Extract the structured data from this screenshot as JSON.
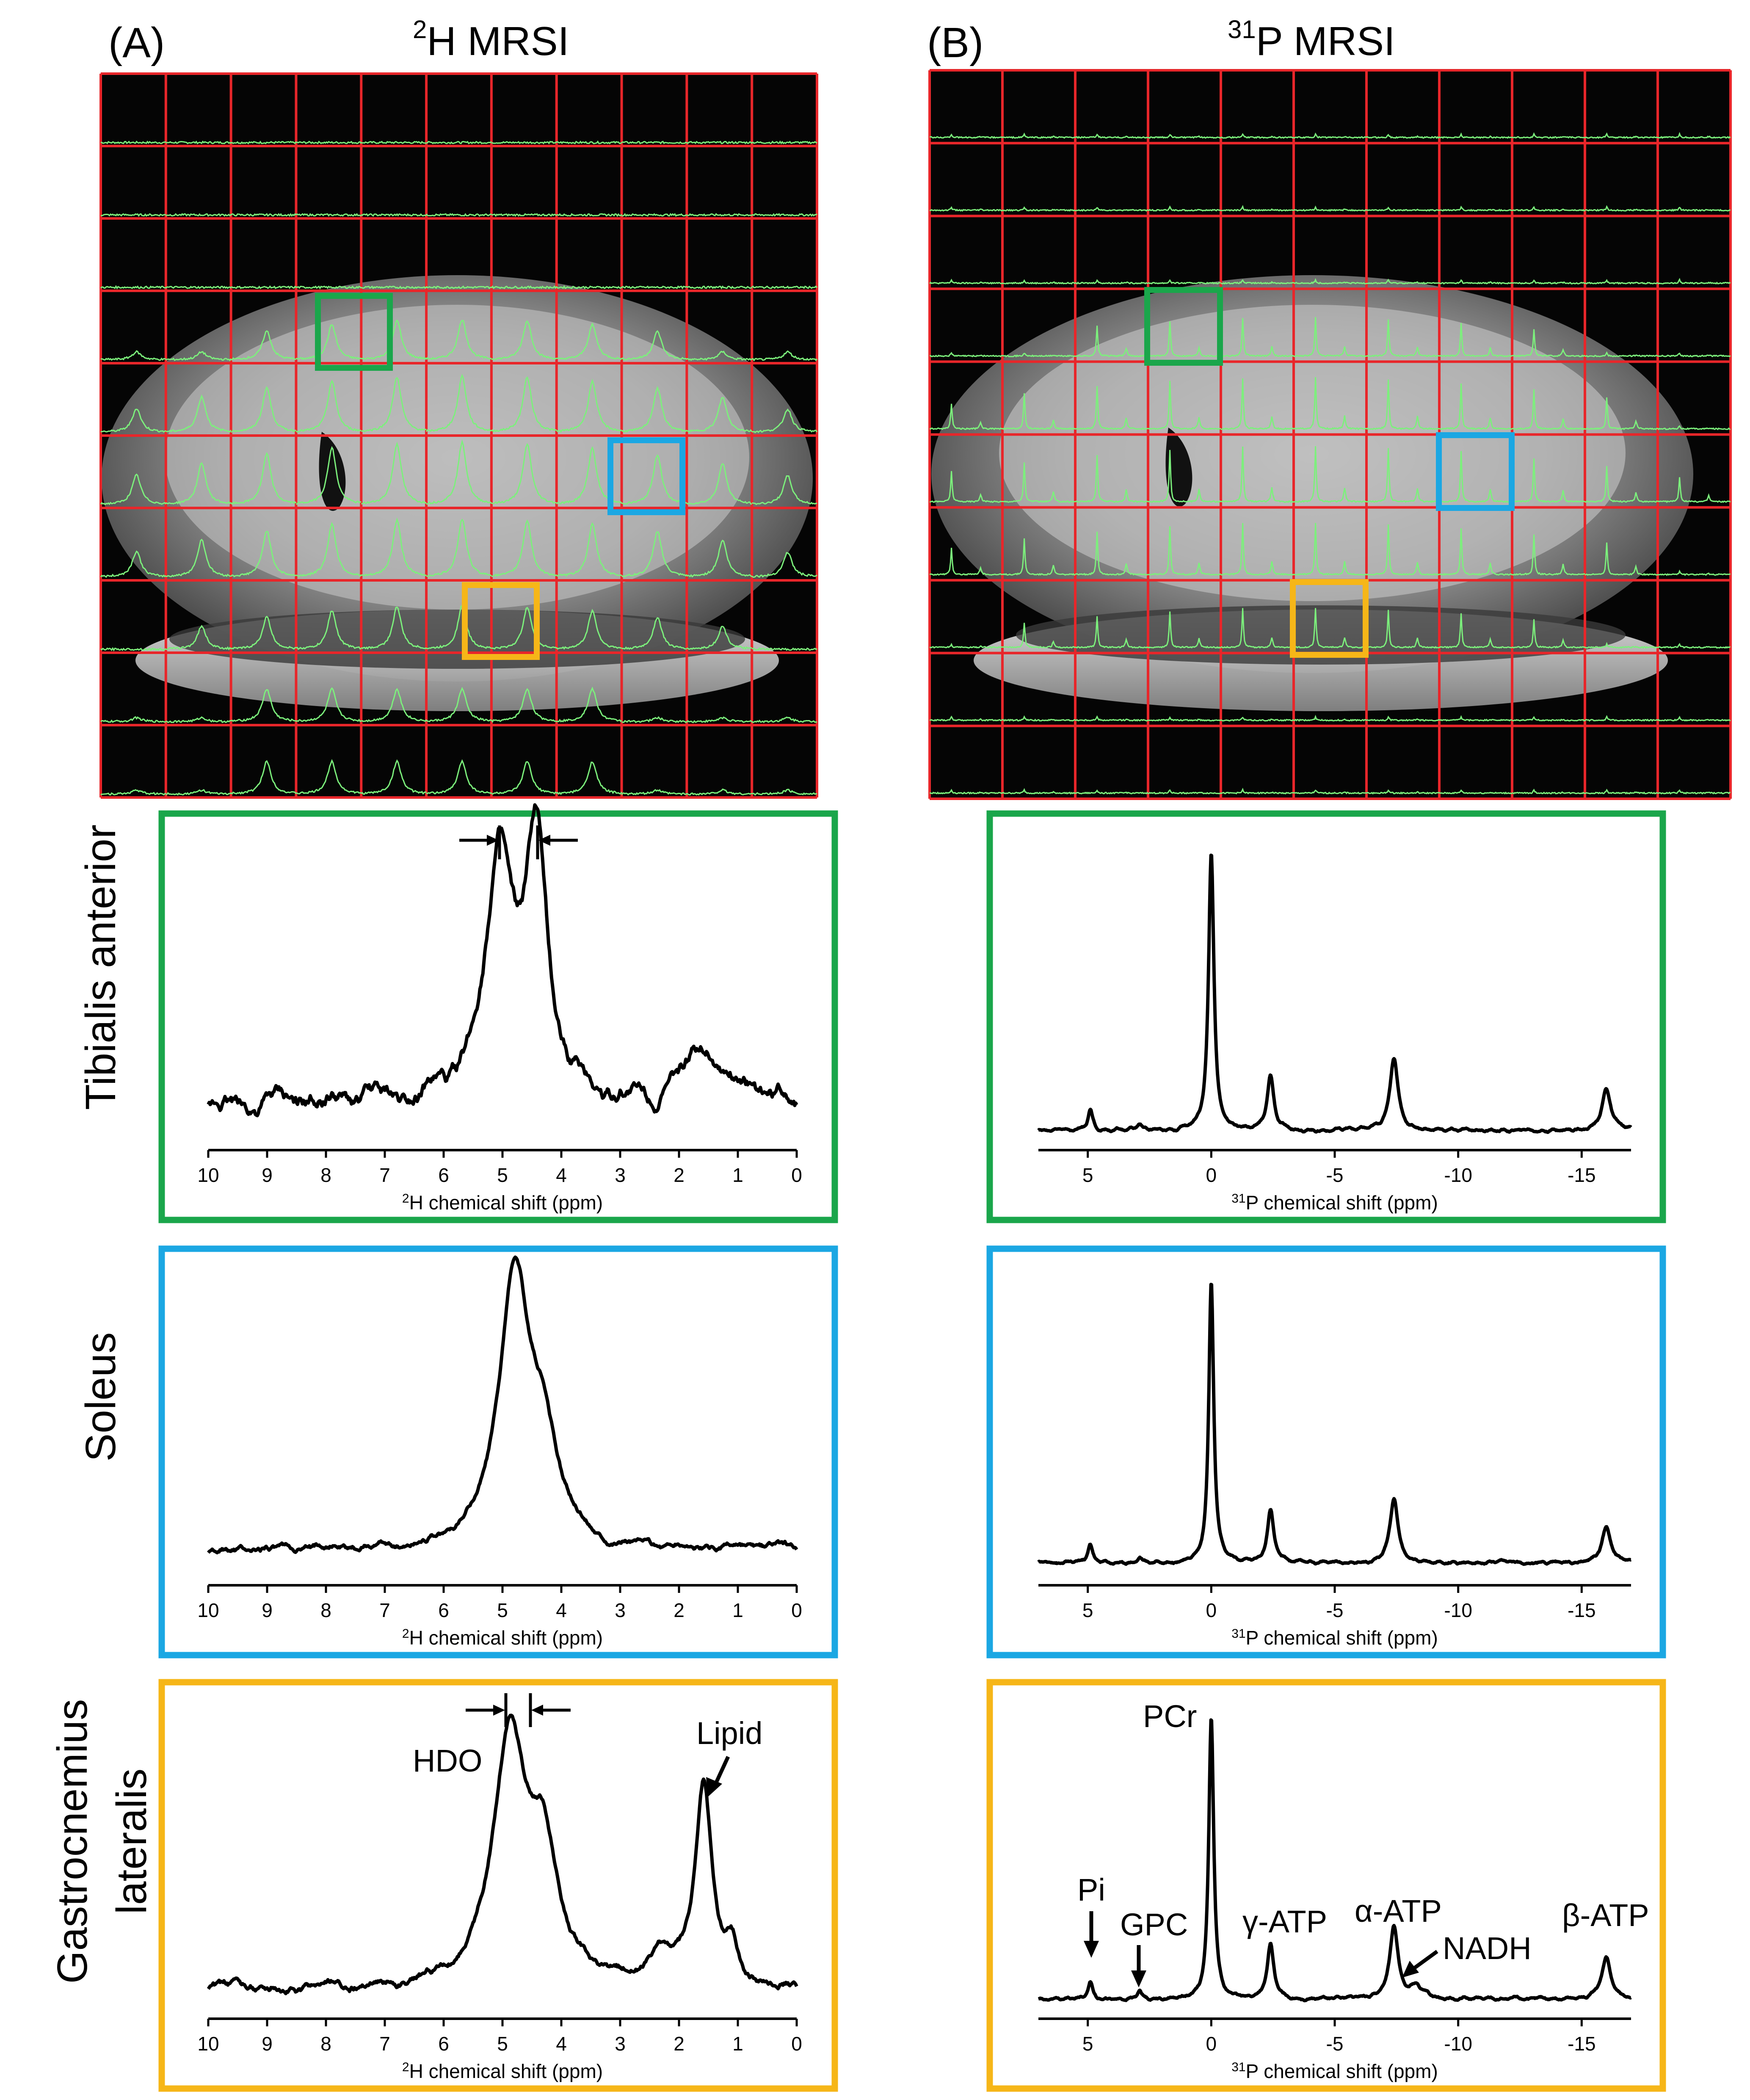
{
  "panels": {
    "a": {
      "letter": "(A)",
      "title_sup": "2",
      "title_main": "H MRSI"
    },
    "b": {
      "letter": "(B)",
      "title_sup": "31",
      "title_main": "P MRSI"
    }
  },
  "colors": {
    "grid": "#e8262a",
    "spectra_overlay": "#7cf07c",
    "tibialis": "#1aa64b",
    "soleus": "#1ba7e3",
    "gastrocnemius": "#f6b618",
    "spectrum_line": "#000000"
  },
  "grid": {
    "rows": 10,
    "cols": 11
  },
  "rows": [
    {
      "label_lines": [
        "Tibialis anterior"
      ],
      "color_key": "tibialis"
    },
    {
      "label_lines": [
        "Soleus"
      ],
      "color_key": "soleus"
    },
    {
      "label_lines": [
        "Gastrocnemius",
        "lateralis"
      ],
      "color_key": "gastrocnemius"
    }
  ],
  "axes": {
    "h2_xlabel_sup": "2",
    "h2_xlabel": "H chemical shift (ppm)",
    "p31_xlabel_sup": "31",
    "p31_xlabel": "P chemical shift (ppm)"
  },
  "annotations": {
    "hdo": "HDO",
    "lipid": "Lipid",
    "pcr": "PCr",
    "pi": "Pi",
    "gpc": "GPC",
    "gamma_atp": "γ-ATP",
    "alpha_atp": "α-ATP",
    "nadh": "NADH",
    "beta_atp": "β-ATP"
  },
  "chart_data": [
    {
      "type": "line",
      "id": "h2-tibialis",
      "title": "Tibialis anterior",
      "xlabel": "2H chemical shift (ppm)",
      "ylabel": "",
      "xlim": [
        10,
        0
      ],
      "xreversed": true,
      "xticks": [
        10,
        9,
        8,
        7,
        6,
        5,
        4,
        3,
        2,
        1,
        0
      ],
      "tick_labels": [
        "10",
        "9",
        "8",
        "7",
        "6",
        "5",
        "4",
        "3",
        "2",
        "1",
        "0"
      ],
      "baseline": 0.12,
      "noise": 0.03,
      "peaks": [
        {
          "x": 5.05,
          "amp": 0.82,
          "w": 0.28
        },
        {
          "x": 4.42,
          "amp": 0.83,
          "w": 0.22
        },
        {
          "x": 1.55,
          "amp": 0.2,
          "w": 0.3
        },
        {
          "x": 0.9,
          "amp": 0.05,
          "w": 0.25
        }
      ]
    },
    {
      "type": "line",
      "id": "h2-soleus",
      "title": "Soleus",
      "xlabel": "2H chemical shift (ppm)",
      "ylabel": "",
      "xlim": [
        10,
        0
      ],
      "xreversed": true,
      "xticks": [
        10,
        9,
        8,
        7,
        6,
        5,
        4,
        3,
        2,
        1,
        0
      ],
      "tick_labels": [
        "10",
        "9",
        "8",
        "7",
        "6",
        "5",
        "4",
        "3",
        "2",
        "1",
        "0"
      ],
      "baseline": 0.08,
      "noise": 0.012,
      "peaks": [
        {
          "x": 4.8,
          "amp": 0.9,
          "w": 0.32
        },
        {
          "x": 4.3,
          "amp": 0.3,
          "w": 0.3
        }
      ]
    },
    {
      "type": "line",
      "id": "h2-gastrocnemius",
      "title": "Gastrocnemius lateralis",
      "xlabel": "2H chemical shift (ppm)",
      "ylabel": "",
      "xlim": [
        10,
        0
      ],
      "xreversed": true,
      "xticks": [
        10,
        9,
        8,
        7,
        6,
        5,
        4,
        3,
        2,
        1,
        0
      ],
      "tick_labels": [
        "10",
        "9",
        "8",
        "7",
        "6",
        "5",
        "4",
        "3",
        "2",
        "1",
        "0"
      ],
      "baseline": 0.06,
      "noise": 0.014,
      "peaks": [
        {
          "x": 4.88,
          "amp": 0.84,
          "w": 0.33
        },
        {
          "x": 4.3,
          "amp": 0.42,
          "w": 0.3
        },
        {
          "x": 1.58,
          "amp": 0.68,
          "w": 0.17
        },
        {
          "x": 2.3,
          "amp": 0.1,
          "w": 0.25
        },
        {
          "x": 1.1,
          "amp": 0.12,
          "w": 0.12
        }
      ]
    },
    {
      "type": "line",
      "id": "p31-tibialis",
      "title": "Tibialis anterior",
      "xlabel": "31P chemical shift (ppm)",
      "ylabel": "",
      "xlim": [
        7,
        -17
      ],
      "xreversed": true,
      "xticks": [
        5,
        0,
        -5,
        -10,
        -15
      ],
      "tick_labels": [
        "5",
        "0",
        "-5",
        "-10",
        "-15"
      ],
      "baseline": 0.03,
      "noise": 0.004,
      "peaks": [
        {
          "x": 4.9,
          "amp": 0.07,
          "w": 0.12
        },
        {
          "x": 2.9,
          "amp": 0.02,
          "w": 0.1
        },
        {
          "x": 0,
          "amp": 0.94,
          "w": 0.13
        },
        {
          "x": -2.4,
          "amp": 0.18,
          "w": 0.16
        },
        {
          "x": -7.4,
          "amp": 0.25,
          "w": 0.2
        },
        {
          "x": -16,
          "amp": 0.14,
          "w": 0.22
        }
      ]
    },
    {
      "type": "line",
      "id": "p31-soleus",
      "title": "Soleus",
      "xlabel": "31P chemical shift (ppm)",
      "ylabel": "",
      "xlim": [
        7,
        -17
      ],
      "xreversed": true,
      "xticks": [
        5,
        0,
        -5,
        -10,
        -15
      ],
      "tick_labels": [
        "5",
        "0",
        "-5",
        "-10",
        "-15"
      ],
      "baseline": 0.04,
      "noise": 0.004,
      "peaks": [
        {
          "x": 4.9,
          "amp": 0.06,
          "w": 0.12
        },
        {
          "x": 2.9,
          "amp": 0.02,
          "w": 0.1
        },
        {
          "x": 0,
          "amp": 0.95,
          "w": 0.12
        },
        {
          "x": -2.4,
          "amp": 0.18,
          "w": 0.16
        },
        {
          "x": -7.4,
          "amp": 0.22,
          "w": 0.2
        },
        {
          "x": -16,
          "amp": 0.12,
          "w": 0.22
        }
      ]
    },
    {
      "type": "line",
      "id": "p31-gastrocnemius",
      "title": "Gastrocnemius lateralis",
      "xlabel": "31P chemical shift (ppm)",
      "ylabel": "",
      "xlim": [
        7,
        -17
      ],
      "xreversed": true,
      "xticks": [
        5,
        0,
        -5,
        -10,
        -15
      ],
      "tick_labels": [
        "5",
        "0",
        "-5",
        "-10",
        "-15"
      ],
      "baseline": 0.03,
      "noise": 0.004,
      "peaks": [
        {
          "x": 4.9,
          "amp": 0.06,
          "w": 0.12
        },
        {
          "x": 2.9,
          "amp": 0.03,
          "w": 0.1
        },
        {
          "x": 0,
          "amp": 0.95,
          "w": 0.12
        },
        {
          "x": -2.4,
          "amp": 0.18,
          "w": 0.16
        },
        {
          "x": -7.4,
          "amp": 0.25,
          "w": 0.2
        },
        {
          "x": -8.3,
          "amp": 0.04,
          "w": 0.3
        },
        {
          "x": -16,
          "amp": 0.14,
          "w": 0.22
        }
      ]
    }
  ]
}
